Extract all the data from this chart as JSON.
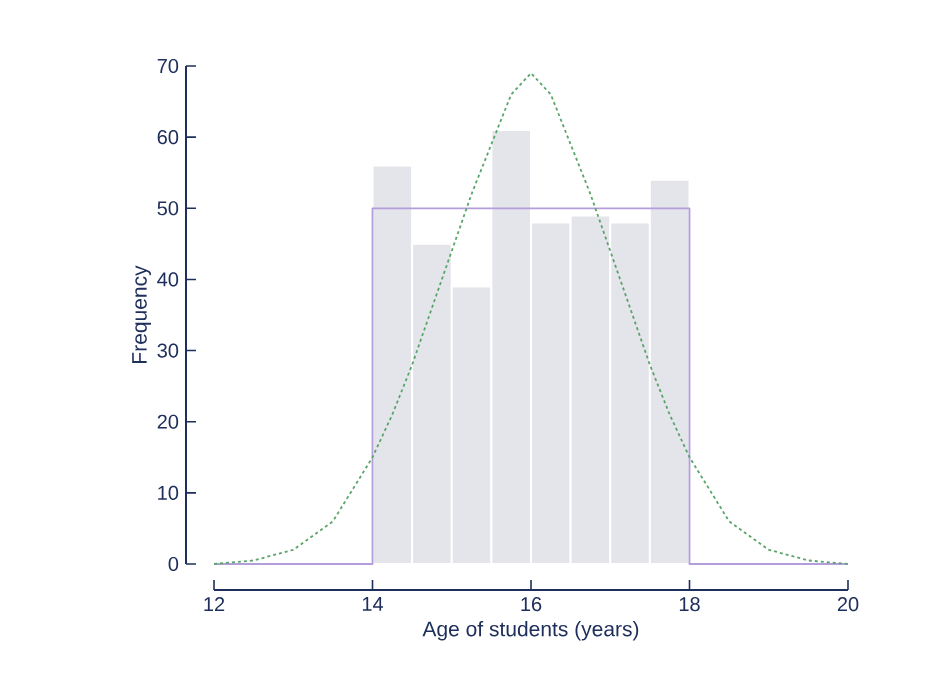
{
  "chart_data": {
    "type": "histogram",
    "xlabel": "Age of students (years)",
    "ylabel": "Frequency",
    "bins": [
      14,
      14.5,
      15,
      15.5,
      16,
      16.5,
      17,
      17.5,
      18
    ],
    "values": [
      56,
      45,
      39,
      61,
      48,
      49,
      48,
      54
    ],
    "color": "#e4e5ea",
    "series": [
      {
        "type": "line",
        "color": "#b39ddb",
        "line_style": "solid",
        "x": [
          12,
          14,
          14,
          18,
          18,
          20
        ],
        "values": [
          0,
          0,
          50,
          50,
          0,
          0
        ]
      },
      {
        "type": "line",
        "color": "#5aa469",
        "line_style": "dotted",
        "x": [
          12,
          12.5,
          13,
          13.5,
          14,
          14.25,
          14.5,
          14.75,
          15,
          15.25,
          15.5,
          15.75,
          16,
          16.25,
          16.5,
          16.75,
          17,
          17.25,
          17.5,
          17.75,
          18,
          18.5,
          19,
          19.5,
          20
        ],
        "values": [
          0,
          0.5,
          2,
          6,
          15,
          21,
          28,
          36,
          44,
          52,
          59,
          66,
          69,
          66,
          59,
          52,
          44,
          36,
          28,
          21,
          15,
          6,
          2,
          0.5,
          0
        ]
      }
    ],
    "xlim": [
      12,
      20
    ],
    "ylim": [
      0,
      70
    ],
    "xticks": [
      12,
      14,
      16,
      18,
      20
    ],
    "yticks": [
      0,
      10,
      20,
      30,
      40,
      50,
      60,
      70
    ]
  }
}
